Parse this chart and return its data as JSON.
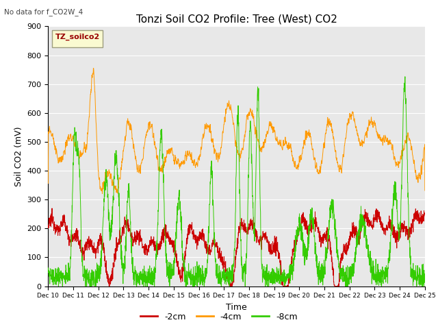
{
  "title": "Tonzi Soil CO2 Profile: Tree (West) CO2",
  "subtitle": "No data for f_CO2W_4",
  "ylabel": "Soil CO2 (mV)",
  "xlabel": "Time",
  "ylim": [
    0,
    900
  ],
  "legend_label": "TZ_soilco2",
  "series_labels": [
    "-2cm",
    "-4cm",
    "-8cm"
  ],
  "series_colors": [
    "#cc0000",
    "#ff9900",
    "#33cc00"
  ],
  "xtick_labels": [
    "Dec 10",
    "Dec 11",
    "Dec 12",
    "Dec 13",
    "Dec 14",
    "Dec 15",
    "Dec 16",
    "Dec 17",
    "Dec 18",
    "Dec 19",
    "Dec 20",
    "Dec 21",
    "Dec 22",
    "Dec 23",
    "Dec 24",
    "Dec 25"
  ],
  "background_color": "#ffffff",
  "plot_bg_color": "#e8e8e8",
  "grid_color": "#ffffff",
  "title_fontsize": 11,
  "axis_fontsize": 9,
  "tick_fontsize": 8
}
